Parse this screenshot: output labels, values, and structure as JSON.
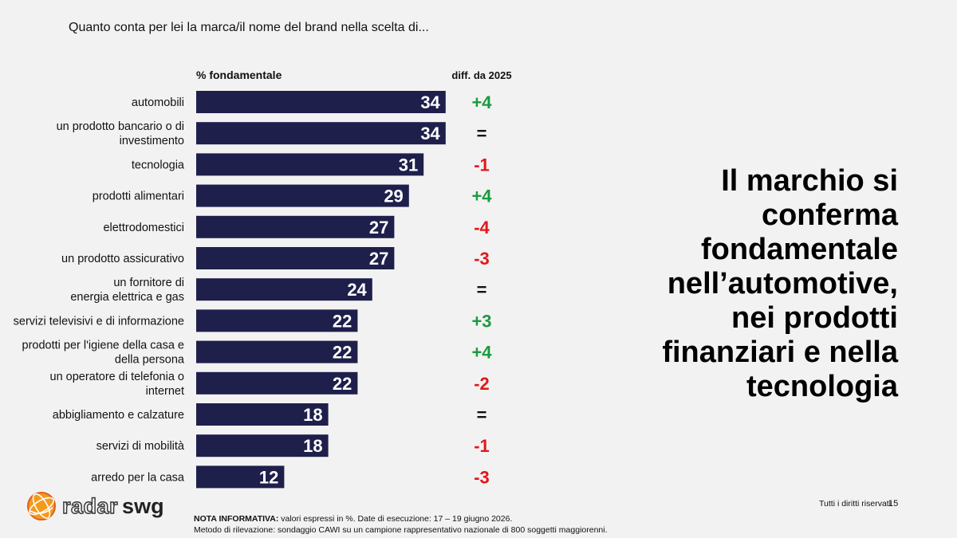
{
  "question": "Quanto conta per lei la marca/il nome del brand nella scelta di...",
  "chart_data": {
    "type": "bar",
    "orientation": "horizontal",
    "value_header": "% fondamentale",
    "diff_header": "diff. da 2025",
    "categories": [
      [
        "automobili"
      ],
      [
        "un prodotto bancario o di",
        "investimento"
      ],
      [
        "tecnologia"
      ],
      [
        "prodotti alimentari"
      ],
      [
        "elettrodomestici"
      ],
      [
        "un prodotto assicurativo"
      ],
      [
        "un fornitore di",
        "energia elettrica e gas"
      ],
      [
        "servizi televisivi e di informazione"
      ],
      [
        "prodotti per l'igiene della casa e",
        "della persona"
      ],
      [
        "un operatore di telefonia o",
        "internet"
      ],
      [
        "abbigliamento e calzature"
      ],
      [
        "servizi di mobilità"
      ],
      [
        "arredo per la casa"
      ]
    ],
    "values": [
      34,
      34,
      31,
      29,
      27,
      27,
      24,
      22,
      22,
      22,
      18,
      18,
      12
    ],
    "diffs": [
      "+4",
      "=",
      "-1",
      "+4",
      "-4",
      "-3",
      "=",
      "+3",
      "+4",
      "-2",
      "=",
      "-1",
      "-3"
    ],
    "bar_color": "#1e1f4b",
    "positive_color": "#1a9a3f",
    "negative_color": "#e3161b",
    "neutral_color": "#111111"
  },
  "headline": "Il marchio si\nconferma\nfondamentale\nnell’automotive,\nnei prodotti\nfinanziari e nella\ntecnologia",
  "logo": {
    "radar": "radar",
    "swg": "swg",
    "icon": "globe-logo-icon"
  },
  "note": {
    "label": "NOTA INFORMATIVA:",
    "line1": " valori espressi in %. Date di esecuzione: 17 – 19 giugno 2026.",
    "line2": "Metodo di rilevazione: sondaggio CAWI su un campione rappresentativo nazionale di 800 soggetti maggiorenni."
  },
  "footer": {
    "rights": "Tutti i diritti riservati",
    "page": "15"
  }
}
